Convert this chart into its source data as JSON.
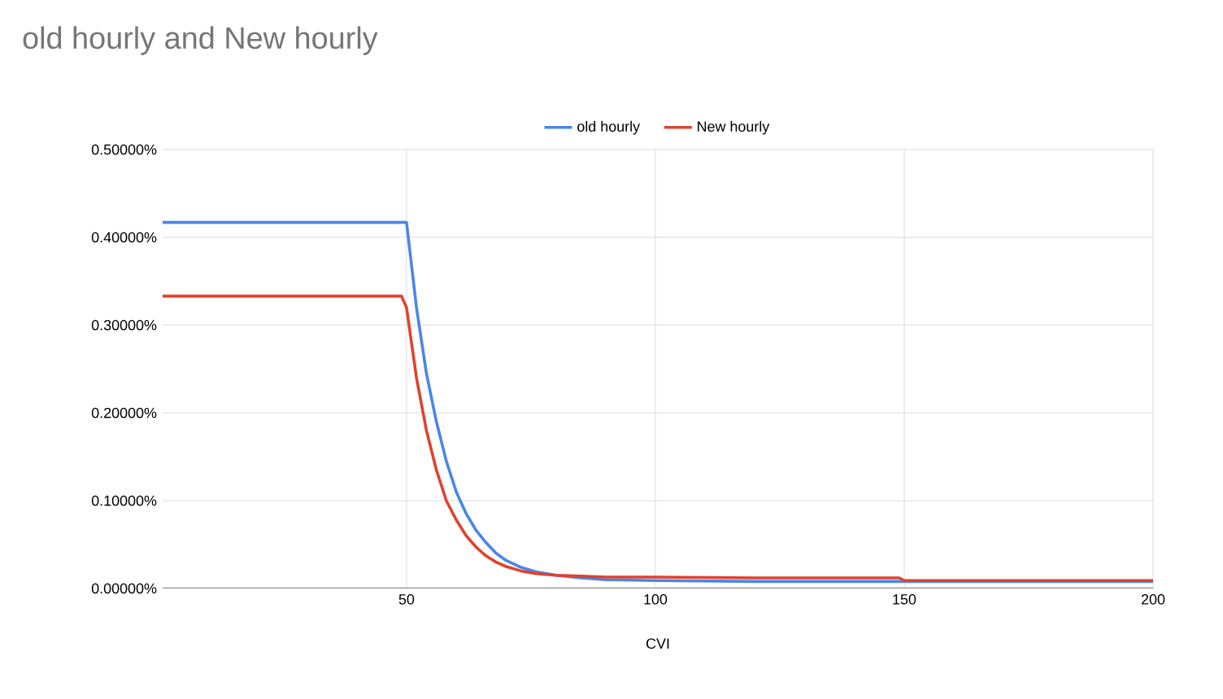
{
  "chart_data": {
    "type": "line",
    "title": "old hourly and New hourly",
    "xlabel": "CVI",
    "xlim": [
      1,
      200
    ],
    "xticks": [
      50,
      100,
      150,
      200
    ],
    "ylim": [
      0,
      0.5
    ],
    "yticks": [
      {
        "value": 0,
        "label": "0.00000%"
      },
      {
        "value": 0.1,
        "label": "0.10000%"
      },
      {
        "value": 0.2,
        "label": "0.20000%"
      },
      {
        "value": 0.3,
        "label": "0.30000%"
      },
      {
        "value": 0.4,
        "label": "0.40000%"
      },
      {
        "value": 0.5,
        "label": "0.50000%"
      }
    ],
    "grid": true,
    "legend": "top",
    "marker": "none",
    "line_style": "solid",
    "series": [
      {
        "name": "old hourly",
        "color": "#4a86e8",
        "x": [
          1,
          50,
          52,
          54,
          56,
          58,
          60,
          62,
          64,
          66,
          68,
          70,
          73,
          76,
          80,
          85,
          90,
          100,
          120,
          149,
          150,
          200
        ],
        "values": [
          0.417,
          0.417,
          0.32,
          0.245,
          0.19,
          0.145,
          0.11,
          0.085,
          0.066,
          0.052,
          0.04,
          0.032,
          0.024,
          0.019,
          0.015,
          0.012,
          0.01,
          0.009,
          0.008,
          0.008,
          0.008,
          0.008
        ]
      },
      {
        "name": "New hourly",
        "color": "#e0412f",
        "x": [
          1,
          49,
          50,
          52,
          54,
          56,
          58,
          60,
          62,
          64,
          66,
          68,
          70,
          73,
          76,
          80,
          85,
          90,
          100,
          120,
          149,
          150,
          200
        ],
        "values": [
          0.333,
          0.333,
          0.32,
          0.24,
          0.18,
          0.135,
          0.1,
          0.078,
          0.06,
          0.047,
          0.037,
          0.03,
          0.025,
          0.02,
          0.017,
          0.015,
          0.014,
          0.013,
          0.013,
          0.012,
          0.012,
          0.009,
          0.009
        ]
      }
    ]
  }
}
